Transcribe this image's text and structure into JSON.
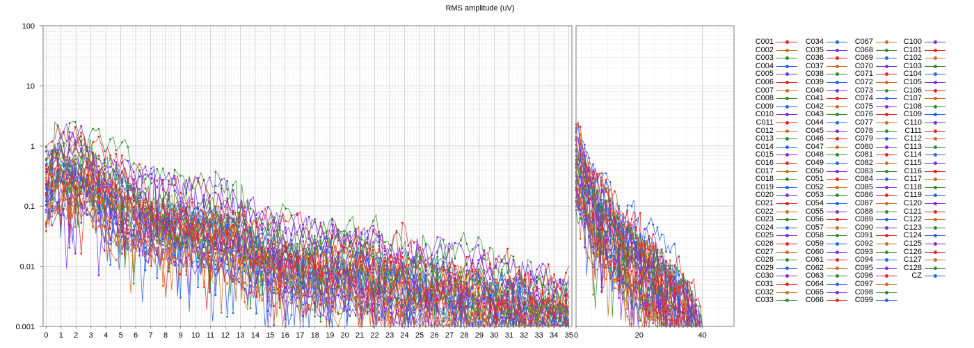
{
  "chart_data": {
    "type": "line",
    "title": "RMS amplitude (uV)",
    "yscale": "log",
    "ylim": [
      0.001,
      100
    ],
    "ytick_labels": [
      "0.001",
      "0.01",
      "0.1",
      "1",
      "10",
      "100"
    ],
    "ytick_values": [
      0.001,
      0.01,
      0.1,
      1,
      10,
      100
    ],
    "grid": true,
    "legend_placement": "right",
    "colors": [
      "#e8231f",
      "#d2691e",
      "#2e8b2e",
      "#2563eb",
      "#7b2be2"
    ],
    "left_panel": {
      "xlim": [
        -0.2,
        35.2
      ],
      "xtick_values": [
        0,
        1,
        2,
        3,
        4,
        5,
        6,
        7,
        8,
        9,
        10,
        11,
        12,
        13,
        14,
        15,
        16,
        17,
        18,
        19,
        20,
        21,
        22,
        23,
        24,
        25,
        26,
        27,
        28,
        29,
        30,
        31,
        32,
        33,
        34,
        35
      ],
      "xtick_labels": [
        "0",
        "1",
        "2",
        "3",
        "4",
        "5",
        "6",
        "7",
        "8",
        "9",
        "10",
        "11",
        "12",
        "13",
        "14",
        "15",
        "16",
        "17",
        "18",
        "19",
        "20",
        "21",
        "22",
        "23",
        "24",
        "25",
        "26",
        "27",
        "28",
        "29",
        "30",
        "31",
        "32",
        "33",
        "34",
        "35"
      ],
      "envelope_x": [
        0,
        1,
        2,
        3,
        4,
        5,
        6,
        7,
        8,
        9,
        10,
        11,
        12,
        13,
        14,
        15,
        16,
        17,
        18,
        19,
        20,
        21,
        22,
        23,
        24,
        25,
        26,
        27,
        28,
        29,
        30,
        31,
        32,
        33,
        34,
        35
      ],
      "envelope_y": [
        1.2,
        1.8,
        1.9,
        1.5,
        0.9,
        0.6,
        0.45,
        0.35,
        0.3,
        0.28,
        0.22,
        0.2,
        0.18,
        0.15,
        0.1,
        0.08,
        0.065,
        0.055,
        0.05,
        0.05,
        0.045,
        0.04,
        0.035,
        0.03,
        0.028,
        0.025,
        0.022,
        0.02,
        0.018,
        0.016,
        0.014,
        0.012,
        0.011,
        0.01,
        0.009,
        0.008
      ]
    },
    "right_panel": {
      "xlim": [
        0,
        50
      ],
      "xtick_values": [
        0,
        20,
        40
      ],
      "xtick_labels": [
        "0",
        "20",
        "40"
      ],
      "envelope_x": [
        0,
        2,
        4,
        6,
        8,
        10,
        12,
        14,
        16,
        18,
        20,
        22,
        24,
        26,
        28,
        30,
        32,
        34,
        36,
        38,
        40
      ],
      "envelope_y": [
        2.0,
        1.2,
        0.6,
        0.35,
        0.25,
        0.18,
        0.12,
        0.09,
        0.07,
        0.055,
        0.045,
        0.035,
        0.028,
        0.022,
        0.017,
        0.013,
        0.01,
        0.008,
        0.005,
        0.003,
        0.001
      ]
    },
    "series_names": [
      "C001",
      "C002",
      "C003",
      "C004",
      "C005",
      "C006",
      "C007",
      "C008",
      "C009",
      "C010",
      "C011",
      "C012",
      "C013",
      "C014",
      "C015",
      "C016",
      "C017",
      "C018",
      "C019",
      "C020",
      "C021",
      "C022",
      "C023",
      "C024",
      "C025",
      "C026",
      "C027",
      "C028",
      "C029",
      "C030",
      "C031",
      "C032",
      "C033",
      "C034",
      "C035",
      "C036",
      "C037",
      "C038",
      "C039",
      "C040",
      "C041",
      "C042",
      "C043",
      "C044",
      "C045",
      "C046",
      "C047",
      "C048",
      "C049",
      "C050",
      "C051",
      "C052",
      "C053",
      "C054",
      "C055",
      "C056",
      "C057",
      "C058",
      "C059",
      "C060",
      "C061",
      "C062",
      "C063",
      "C064",
      "C065",
      "C066",
      "C067",
      "C068",
      "C069",
      "C070",
      "C071",
      "C072",
      "C073",
      "C074",
      "C075",
      "C076",
      "C077",
      "C078",
      "C079",
      "C080",
      "C081",
      "C082",
      "C083",
      "C084",
      "C085",
      "C086",
      "C087",
      "C088",
      "C089",
      "C090",
      "C091",
      "C092",
      "C093",
      "C094",
      "C095",
      "C096",
      "C097",
      "C098",
      "C099",
      "C100",
      "C101",
      "C102",
      "C103",
      "C104",
      "C105",
      "C106",
      "C107",
      "C108",
      "C109",
      "C110",
      "C111",
      "C112",
      "C113",
      "C114",
      "C115",
      "C116",
      "C117",
      "C118",
      "C119",
      "C120",
      "C121",
      "C122",
      "C123",
      "C124",
      "C125",
      "C126",
      "C127",
      "C128",
      "CZ"
    ]
  }
}
